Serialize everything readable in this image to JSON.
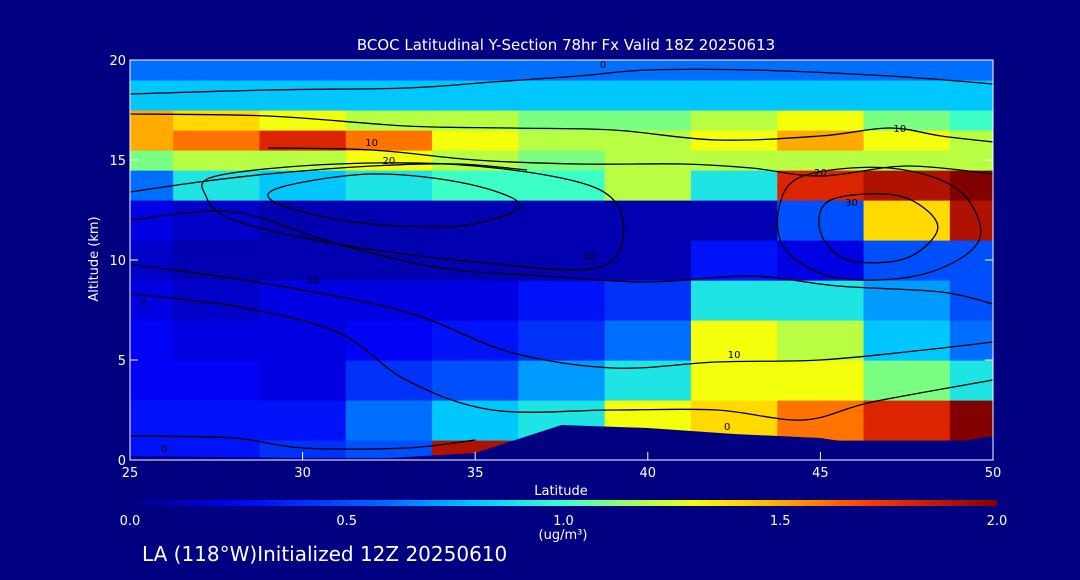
{
  "chart_data": {
    "type": "heatmap",
    "title": "BCOC Latitudinal Y-Section 78hr  Fx Valid 18Z 20250613",
    "xlabel": "Latitude",
    "ylabel": "Altitude (km)",
    "xlim": [
      25,
      50
    ],
    "ylim": [
      0,
      20
    ],
    "x_ticks": [
      "25",
      "30",
      "35",
      "40",
      "45",
      "50"
    ],
    "y_ticks": [
      "0",
      "5",
      "10",
      "15",
      "20"
    ],
    "x": [
      25,
      27.5,
      30,
      32.5,
      35,
      37.5,
      40,
      42.5,
      45,
      47.5,
      50
    ],
    "y": [
      0,
      2,
      4,
      6,
      8,
      10,
      12,
      14,
      15,
      16,
      17,
      18,
      20
    ],
    "z": [
      [
        0.3,
        0.3,
        0.4,
        0.5,
        1.9,
        0,
        0,
        0,
        0,
        0,
        0
      ],
      [
        0.3,
        0.3,
        0.3,
        0.6,
        0.8,
        0.9,
        1.3,
        1.4,
        1.6,
        1.8,
        2.0
      ],
      [
        0.25,
        0.25,
        0.2,
        0.4,
        0.5,
        0.7,
        0.9,
        1.3,
        1.3,
        1.1,
        0.9
      ],
      [
        0.25,
        0.2,
        0.2,
        0.25,
        0.3,
        0.4,
        0.6,
        1.3,
        1.2,
        0.8,
        0.6
      ],
      [
        0.2,
        0.15,
        0.2,
        0.2,
        0.2,
        0.3,
        0.4,
        0.9,
        0.9,
        0.7,
        0.5
      ],
      [
        0.15,
        0.1,
        0.1,
        0.1,
        0.1,
        0.1,
        0.1,
        0.3,
        0.2,
        0.5,
        0.5
      ],
      [
        0.2,
        0.15,
        0.1,
        0.1,
        0.1,
        0.1,
        0.1,
        0.1,
        0.5,
        1.4,
        1.9
      ],
      [
        0.6,
        0.9,
        0.8,
        0.9,
        1.0,
        1.0,
        1.2,
        0.9,
        1.8,
        1.9,
        2.0
      ],
      [
        1.1,
        1.2,
        1.2,
        1.3,
        1.2,
        1.1,
        1.2,
        1.2,
        1.2,
        1.2,
        1.2
      ],
      [
        1.5,
        1.6,
        1.8,
        1.6,
        1.3,
        1.2,
        1.2,
        1.3,
        1.5,
        1.3,
        1.2
      ],
      [
        1.5,
        1.4,
        1.3,
        1.2,
        1.2,
        1.1,
        1.1,
        1.2,
        1.3,
        1.1,
        1.0
      ],
      [
        0.8,
        0.8,
        0.8,
        0.8,
        0.8,
        0.8,
        0.8,
        0.8,
        0.8,
        0.8,
        0.8
      ],
      [
        0.6,
        0.6,
        0.6,
        0.6,
        0.6,
        0.6,
        0.6,
        0.6,
        0.6,
        0.6,
        0.6
      ]
    ],
    "terrain_km": [
      0.2,
      0.15,
      0.1,
      0.1,
      0.35,
      1.75,
      1.6,
      1.3,
      1.1,
      0.45,
      1.2
    ],
    "contour_labels": [
      {
        "text": "0",
        "x": 38.7,
        "y": 19.6
      },
      {
        "text": "10",
        "x": 32.0,
        "y": 15.7
      },
      {
        "text": "20",
        "x": 32.5,
        "y": 14.8
      },
      {
        "text": "20",
        "x": 45.0,
        "y": 14.2
      },
      {
        "text": "10",
        "x": 47.3,
        "y": 16.4
      },
      {
        "text": "30",
        "x": 45.9,
        "y": 12.7
      },
      {
        "text": "20",
        "x": 38.3,
        "y": 10.0
      },
      {
        "text": "10",
        "x": 30.3,
        "y": 8.8
      },
      {
        "text": "0",
        "x": 25.4,
        "y": 7.7
      },
      {
        "text": "10",
        "x": 42.5,
        "y": 5.1
      },
      {
        "text": "0",
        "x": 42.3,
        "y": 1.5
      },
      {
        "text": "0",
        "x": 26.0,
        "y": 0.4
      }
    ],
    "colorbar": {
      "range": [
        0.0,
        2.0
      ],
      "ticks": [
        "0.0",
        "0.5",
        "1.0",
        "1.5",
        "2.0"
      ],
      "unit_label": "(ug/m³)"
    }
  },
  "footer": {
    "caption": "LA (118°W)Initialized 12Z 20250610"
  }
}
